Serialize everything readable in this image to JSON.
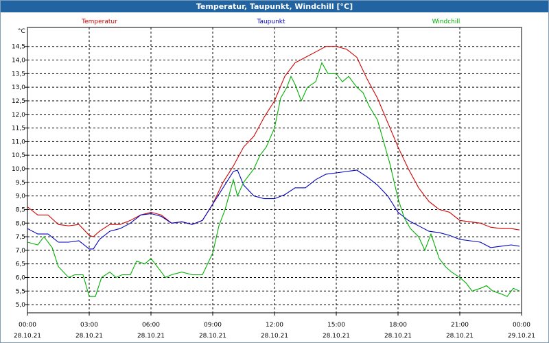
{
  "window": {
    "title": "Temperatur, Taupunkt, Windchill [°C]"
  },
  "chart_data": {
    "type": "line",
    "title": "Temperatur, Taupunkt, Windchill [°C]",
    "ylabel": "°C",
    "ylim": [
      4.7,
      15.2
    ],
    "y_ticks": [
      "5,0",
      "5,5",
      "6,0",
      "6,5",
      "7,0",
      "7,5",
      "8,0",
      "8,5",
      "9,0",
      "9,5",
      "10,0",
      "10,5",
      "11,0",
      "11,5",
      "12,0",
      "12,5",
      "13,0",
      "13,5",
      "14,0",
      "14,5"
    ],
    "x_range_hours": [
      0,
      24
    ],
    "x_ticks": [
      {
        "time": "00:00",
        "date": "28.10.21"
      },
      {
        "time": "03:00",
        "date": "28.10.21"
      },
      {
        "time": "06:00",
        "date": "28.10.21"
      },
      {
        "time": "09:00",
        "date": "28.10.21"
      },
      {
        "time": "12:00",
        "date": "28.10.21"
      },
      {
        "time": "15:00",
        "date": "28.10.21"
      },
      {
        "time": "18:00",
        "date": "28.10.21"
      },
      {
        "time": "21:00",
        "date": "28.10.21"
      },
      {
        "time": "00:00",
        "date": "29.10.21"
      }
    ],
    "grid": true,
    "legend_position": "top",
    "series": [
      {
        "name": "Temperatur",
        "color": "#d00000",
        "points": [
          [
            0,
            8.6
          ],
          [
            0.5,
            8.3
          ],
          [
            1,
            8.3
          ],
          [
            1.5,
            7.95
          ],
          [
            2,
            7.9
          ],
          [
            2.5,
            7.95
          ],
          [
            3,
            7.55
          ],
          [
            3.2,
            7.5
          ],
          [
            3.5,
            7.7
          ],
          [
            4,
            7.95
          ],
          [
            4.5,
            7.95
          ],
          [
            5,
            8.1
          ],
          [
            5.5,
            8.3
          ],
          [
            6,
            8.4
          ],
          [
            6.5,
            8.3
          ],
          [
            7,
            8.0
          ],
          [
            7.5,
            8.05
          ],
          [
            8,
            7.95
          ],
          [
            8.5,
            8.1
          ],
          [
            9,
            8.7
          ],
          [
            9.5,
            9.5
          ],
          [
            10,
            10.1
          ],
          [
            10.5,
            10.8
          ],
          [
            11,
            11.2
          ],
          [
            11.5,
            11.9
          ],
          [
            12,
            12.5
          ],
          [
            12.5,
            13.4
          ],
          [
            13,
            13.9
          ],
          [
            13.5,
            14.1
          ],
          [
            14,
            14.3
          ],
          [
            14.5,
            14.5
          ],
          [
            15,
            14.5
          ],
          [
            15.5,
            14.4
          ],
          [
            16,
            14.1
          ],
          [
            16.5,
            13.3
          ],
          [
            17,
            12.6
          ],
          [
            17.5,
            11.7
          ],
          [
            18,
            10.8
          ],
          [
            18.5,
            10.0
          ],
          [
            19,
            9.3
          ],
          [
            19.5,
            8.8
          ],
          [
            20,
            8.5
          ],
          [
            20.5,
            8.4
          ],
          [
            21,
            8.1
          ],
          [
            21.5,
            8.05
          ],
          [
            22,
            8.0
          ],
          [
            22.5,
            7.85
          ],
          [
            23,
            7.8
          ],
          [
            23.5,
            7.8
          ],
          [
            23.9,
            7.75
          ]
        ]
      },
      {
        "name": "Taupunkt",
        "color": "#0000c0",
        "points": [
          [
            0,
            7.8
          ],
          [
            0.5,
            7.6
          ],
          [
            1,
            7.6
          ],
          [
            1.5,
            7.3
          ],
          [
            2,
            7.3
          ],
          [
            2.5,
            7.35
          ],
          [
            3,
            7.05
          ],
          [
            3.2,
            7.05
          ],
          [
            3.5,
            7.4
          ],
          [
            4,
            7.7
          ],
          [
            4.5,
            7.8
          ],
          [
            5,
            8.0
          ],
          [
            5.5,
            8.3
          ],
          [
            6,
            8.35
          ],
          [
            6.5,
            8.25
          ],
          [
            7,
            8.0
          ],
          [
            7.5,
            8.05
          ],
          [
            8,
            7.95
          ],
          [
            8.5,
            8.1
          ],
          [
            9,
            8.7
          ],
          [
            9.5,
            9.3
          ],
          [
            10,
            9.9
          ],
          [
            10.2,
            9.95
          ],
          [
            10.5,
            9.4
          ],
          [
            11,
            9.0
          ],
          [
            11.5,
            8.9
          ],
          [
            12,
            8.9
          ],
          [
            12.5,
            9.05
          ],
          [
            13,
            9.3
          ],
          [
            13.5,
            9.3
          ],
          [
            14,
            9.6
          ],
          [
            14.5,
            9.8
          ],
          [
            15,
            9.85
          ],
          [
            15.5,
            9.9
          ],
          [
            16,
            9.95
          ],
          [
            16.5,
            9.7
          ],
          [
            17,
            9.4
          ],
          [
            17.5,
            9.0
          ],
          [
            18,
            8.4
          ],
          [
            18.5,
            8.1
          ],
          [
            19,
            7.9
          ],
          [
            19.5,
            7.7
          ],
          [
            20,
            7.65
          ],
          [
            20.5,
            7.55
          ],
          [
            21,
            7.4
          ],
          [
            21.5,
            7.35
          ],
          [
            22,
            7.3
          ],
          [
            22.5,
            7.1
          ],
          [
            23,
            7.15
          ],
          [
            23.5,
            7.2
          ],
          [
            23.9,
            7.15
          ]
        ]
      },
      {
        "name": "Windchill",
        "color": "#00b000",
        "points": [
          [
            0,
            7.3
          ],
          [
            0.5,
            7.2
          ],
          [
            0.8,
            7.5
          ],
          [
            1.2,
            7.1
          ],
          [
            1.5,
            6.4
          ],
          [
            2,
            6.0
          ],
          [
            2.3,
            6.1
          ],
          [
            2.7,
            6.1
          ],
          [
            3,
            5.3
          ],
          [
            3.3,
            5.3
          ],
          [
            3.6,
            6.0
          ],
          [
            4,
            6.2
          ],
          [
            4.3,
            6.0
          ],
          [
            4.6,
            6.1
          ],
          [
            5,
            6.1
          ],
          [
            5.3,
            6.6
          ],
          [
            5.7,
            6.5
          ],
          [
            6,
            6.7
          ],
          [
            6.3,
            6.4
          ],
          [
            6.7,
            6.0
          ],
          [
            7,
            6.1
          ],
          [
            7.5,
            6.2
          ],
          [
            8,
            6.1
          ],
          [
            8.5,
            6.1
          ],
          [
            9,
            6.9
          ],
          [
            9.3,
            7.9
          ],
          [
            9.6,
            8.5
          ],
          [
            10,
            9.6
          ],
          [
            10.2,
            9.0
          ],
          [
            10.5,
            9.5
          ],
          [
            11,
            10.0
          ],
          [
            11.3,
            10.5
          ],
          [
            11.6,
            10.8
          ],
          [
            12,
            11.5
          ],
          [
            12.3,
            12.6
          ],
          [
            12.6,
            13.0
          ],
          [
            12.8,
            13.4
          ],
          [
            13,
            13.1
          ],
          [
            13.3,
            12.5
          ],
          [
            13.6,
            13.0
          ],
          [
            14,
            13.2
          ],
          [
            14.3,
            13.9
          ],
          [
            14.6,
            13.5
          ],
          [
            15,
            13.5
          ],
          [
            15.3,
            13.2
          ],
          [
            15.6,
            13.4
          ],
          [
            16,
            13.0
          ],
          [
            16.3,
            12.8
          ],
          [
            16.6,
            12.3
          ],
          [
            17,
            11.8
          ],
          [
            17.3,
            11.0
          ],
          [
            17.6,
            10.2
          ],
          [
            18,
            8.9
          ],
          [
            18.3,
            8.2
          ],
          [
            18.6,
            7.8
          ],
          [
            19,
            7.5
          ],
          [
            19.3,
            7.0
          ],
          [
            19.6,
            7.6
          ],
          [
            20,
            6.7
          ],
          [
            20.3,
            6.4
          ],
          [
            20.6,
            6.2
          ],
          [
            21,
            6.0
          ],
          [
            21.3,
            5.8
          ],
          [
            21.6,
            5.5
          ],
          [
            22,
            5.6
          ],
          [
            22.3,
            5.7
          ],
          [
            22.6,
            5.5
          ],
          [
            23,
            5.4
          ],
          [
            23.3,
            5.3
          ],
          [
            23.6,
            5.6
          ],
          [
            23.9,
            5.5
          ]
        ]
      }
    ]
  }
}
